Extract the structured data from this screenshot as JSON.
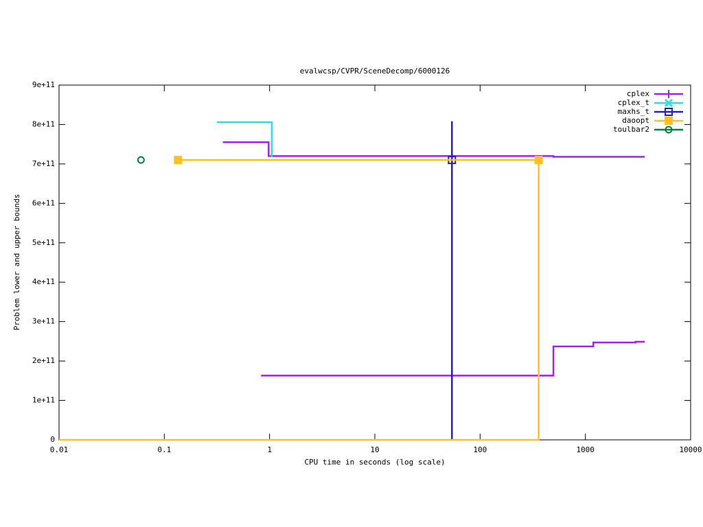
{
  "chart_data": {
    "type": "step",
    "title": "evalwcsp/CVPR/SceneDecomp/6000126",
    "x_label": "CPU time in seconds (log scale)",
    "y_label": "Problem lower and upper bounds",
    "x_log": true,
    "xlim": [
      0.01,
      10000
    ],
    "xticks": [
      0.01,
      0.1,
      1,
      10,
      100,
      1000,
      10000
    ],
    "ylim": [
      0,
      900000000000
    ],
    "yticks": [
      0,
      {
        "value": 100000000000,
        "label": "1e+11"
      },
      {
        "value": 200000000000,
        "label": "2e+11"
      },
      {
        "value": 300000000000,
        "label": "3e+11"
      },
      {
        "value": 400000000000,
        "label": "4e+11"
      },
      {
        "value": 500000000000,
        "label": "5e+11"
      },
      {
        "value": 600000000000,
        "label": "6e+11"
      },
      {
        "value": 700000000000,
        "label": "7e+11"
      },
      {
        "value": 800000000000,
        "label": "8e+11"
      },
      {
        "value": 900000000000,
        "label": "9e+11"
      }
    ],
    "legend": "top-right",
    "series": [
      {
        "name": "cplex",
        "color": "#a020f0",
        "marker": "plus",
        "points": false,
        "x": [
          0.36,
          0.98,
          497,
          3665,
          null,
          0.83,
          497,
          1190,
          3000,
          3665
        ],
        "values": [
          755000000000,
          720000000000,
          718000000000,
          718000000000,
          null,
          163000000000,
          237000000000,
          247000000000,
          249000000000,
          249000000000
        ]
      },
      {
        "name": "cplex_t",
        "color": "#30e0e0",
        "marker": "cross",
        "points": false,
        "x": [
          0.316,
          1.05
        ],
        "values": [
          806000000000,
          717000000000
        ]
      },
      {
        "name": "maxhs_t",
        "color": "#2020c0",
        "marker": "open-square",
        "points": true,
        "x": [
          54,
          null,
          54,
          54
        ],
        "values": [
          710000000000,
          null,
          808000000000,
          0
        ]
      },
      {
        "name": "daoopt",
        "color": "#ffc020",
        "marker": "square",
        "points": true,
        "x": [
          0.135,
          360,
          null,
          0.01,
          360,
          360
        ],
        "values": [
          710000000000,
          710000000000,
          null,
          0,
          0,
          710000000000
        ]
      },
      {
        "name": "toulbar2",
        "color": "#008040",
        "marker": "circle",
        "points": true,
        "x": [
          0.06
        ],
        "values": [
          710000000000
        ]
      }
    ]
  }
}
